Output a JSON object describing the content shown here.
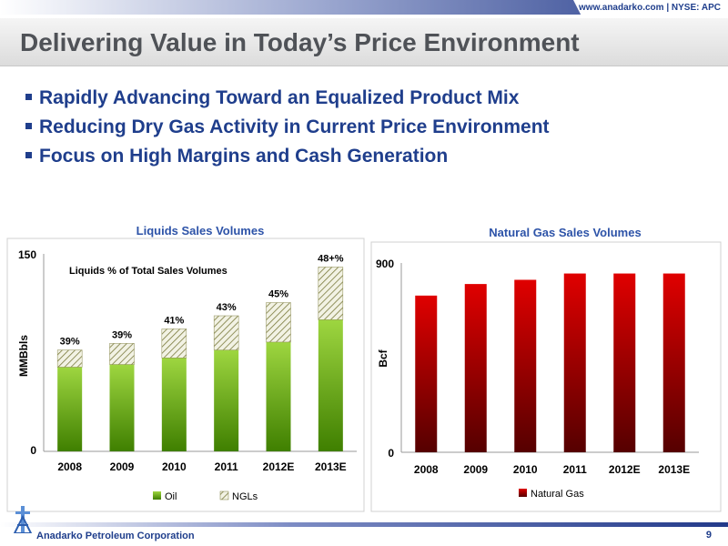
{
  "header": {
    "url_text": "www.anadarko.com | NYSE: APC"
  },
  "title": "Delivering Value in Today’s Price Environment",
  "bullets": [
    "Rapidly Advancing Toward an Equalized Product Mix",
    "Reducing Dry Gas Activity in Current Price Environment",
    "Focus on High Margins and Cash Generation"
  ],
  "colors": {
    "brand_blue": "#1f3e8c",
    "title_gray": "#4f5257",
    "oil_green": "#8cc63f",
    "ngl_hatch": "#c9c98f",
    "gas_red": "#d40000",
    "chart_title_blue": "#2d53a8"
  },
  "chart_data": [
    {
      "type": "bar",
      "stacked": true,
      "title": "Liquids Sales Volumes",
      "annotation": "Liquids % of Total Sales Volumes",
      "ylabel": "MMBbls",
      "ylim": [
        0,
        150
      ],
      "yticks": [
        "0",
        "150"
      ],
      "categories": [
        "2008",
        "2009",
        "2010",
        "2011",
        "2012E",
        "2013E"
      ],
      "series": [
        {
          "name": "Oil",
          "values": [
            64,
            66,
            71,
            77,
            83,
            100
          ]
        },
        {
          "name": "NGLs",
          "values": [
            13,
            16,
            22,
            26,
            30,
            40
          ]
        }
      ],
      "data_labels": [
        "39%",
        "39%",
        "41%",
        "43%",
        "45%",
        "48+%"
      ],
      "legend": "bottom",
      "grid": false
    },
    {
      "type": "bar",
      "title": "Natural Gas Sales Volumes",
      "ylabel": "Bcf",
      "ylim": [
        0,
        900
      ],
      "yticks": [
        "0",
        "900"
      ],
      "categories": [
        "2008",
        "2009",
        "2010",
        "2011",
        "2012E",
        "2013E"
      ],
      "series": [
        {
          "name": "Natural Gas",
          "values": [
            745,
            800,
            820,
            850,
            850,
            850
          ]
        }
      ],
      "legend": "bottom",
      "grid": false
    }
  ],
  "footer": {
    "company": "Anadarko Petroleum Corporation",
    "page_number": "9"
  }
}
